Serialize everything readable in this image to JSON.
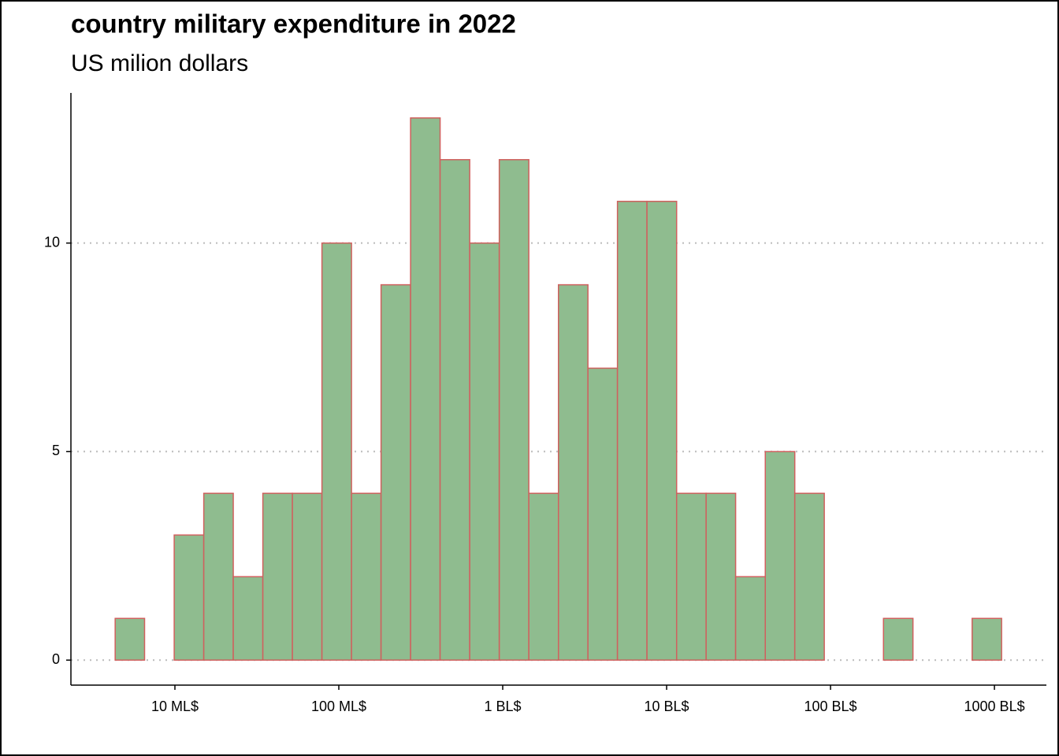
{
  "chart_data": {
    "type": "histogram",
    "title": "country military expenditure in 2022",
    "subtitle": "US milion dollars",
    "x_scale": "log",
    "bins": [
      4.32,
      6.53,
      9.9,
      15.0,
      22.7,
      34.4,
      52.1,
      78.9,
      119.5,
      181,
      274,
      415,
      629,
      953,
      1443,
      2188,
      3311,
      5012,
      7586,
      11510,
      17420,
      26360,
      39990,
      60530,
      91620,
      139000,
      210400,
      318400,
      483100,
      731100,
      1106000
    ],
    "values": [
      1,
      0,
      3,
      4,
      2,
      4,
      4,
      10,
      4,
      9,
      13,
      12,
      10,
      12,
      4,
      9,
      7,
      11,
      11,
      4,
      4,
      2,
      5,
      4,
      0,
      0,
      1,
      0,
      0,
      1
    ],
    "color": "#8fbc8f",
    "edge_color": "#d0605e",
    "xlim": [
      2.32,
      2075000
    ],
    "xticks": [
      {
        "value": 10,
        "label": "10 ML$"
      },
      {
        "value": 100,
        "label": "100 ML$"
      },
      {
        "value": 1000,
        "label": "1 BL$"
      },
      {
        "value": 10000,
        "label": "10 BL$"
      },
      {
        "value": 100000,
        "label": "100 BL$"
      },
      {
        "value": 1000000,
        "label": "1000 BL$"
      }
    ],
    "ylim": [
      -0.6,
      13.6
    ],
    "yticks": [
      0,
      5,
      10
    ],
    "grid": true
  }
}
